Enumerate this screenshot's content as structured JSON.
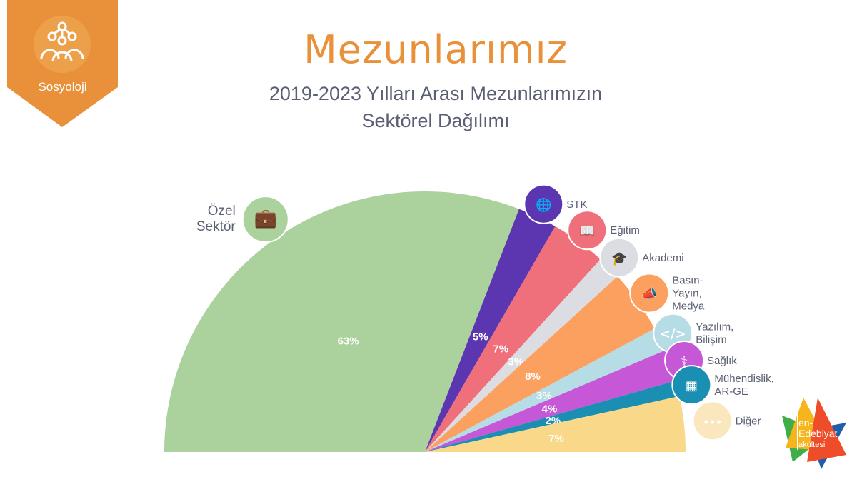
{
  "badge": {
    "label": "Sosyoloji",
    "icon": "people-network-icon",
    "color": "#e8913a"
  },
  "header": {
    "title": "Mezunlarımız",
    "subtitle_line1": "2019-2023 Yılları Arası Mezunlarımızın",
    "subtitle_line2": "Sektörel Dağılımı"
  },
  "logo": {
    "text": "Fen-Edebiyat Fakültesi"
  },
  "chart_data": {
    "type": "pie",
    "variant": "semicircle",
    "title": "2019-2023 Yılları Arası Mezunlarımızın Sektörel Dağılımı",
    "categories": [
      "Özel Sektör",
      "STK",
      "Eğitim",
      "Akademi",
      "Basın-Yayın, Medya",
      "Yazılım, Bilişim",
      "Sağlık",
      "Mühendislik, AR-GE",
      "Diğer"
    ],
    "values": [
      63,
      5,
      7,
      3,
      8,
      3,
      4,
      2,
      7
    ],
    "value_labels": [
      "63%",
      "5%",
      "7%",
      "3%",
      "8%",
      "3%",
      "4%",
      "2%",
      "7%"
    ],
    "label_lines": [
      [
        "Özel",
        "Sektör"
      ],
      [
        "STK"
      ],
      [
        "Eğitim"
      ],
      [
        "Akademi"
      ],
      [
        "Basın-",
        "Yayın,",
        "Medya"
      ],
      [
        "Yazılım,",
        "Bilişim"
      ],
      [
        "Sağlık"
      ],
      [
        "Mühendislik,",
        "AR-GE"
      ],
      [
        "Diğer"
      ]
    ],
    "icons": [
      "briefcase-icon",
      "globe-hand-icon",
      "book-icon",
      "graduation-cap-icon",
      "megaphone-icon",
      "code-monitor-icon",
      "caduceus-icon",
      "circuit-icon",
      "more-dots-icon"
    ],
    "colors": [
      "#abd19d",
      "#5b36b0",
      "#ef6f7b",
      "#dcdde2",
      "#fba05e",
      "#b6dce5",
      "#c657d6",
      "#1a8fb3",
      "#fad88a"
    ],
    "icon_colors": [
      "#abd19d",
      "#5b36b0",
      "#ef6f7b",
      "#dcdde2",
      "#fba05e",
      "#b6dce5",
      "#c657d6",
      "#1a8fb3",
      "#fbe7bd"
    ]
  }
}
